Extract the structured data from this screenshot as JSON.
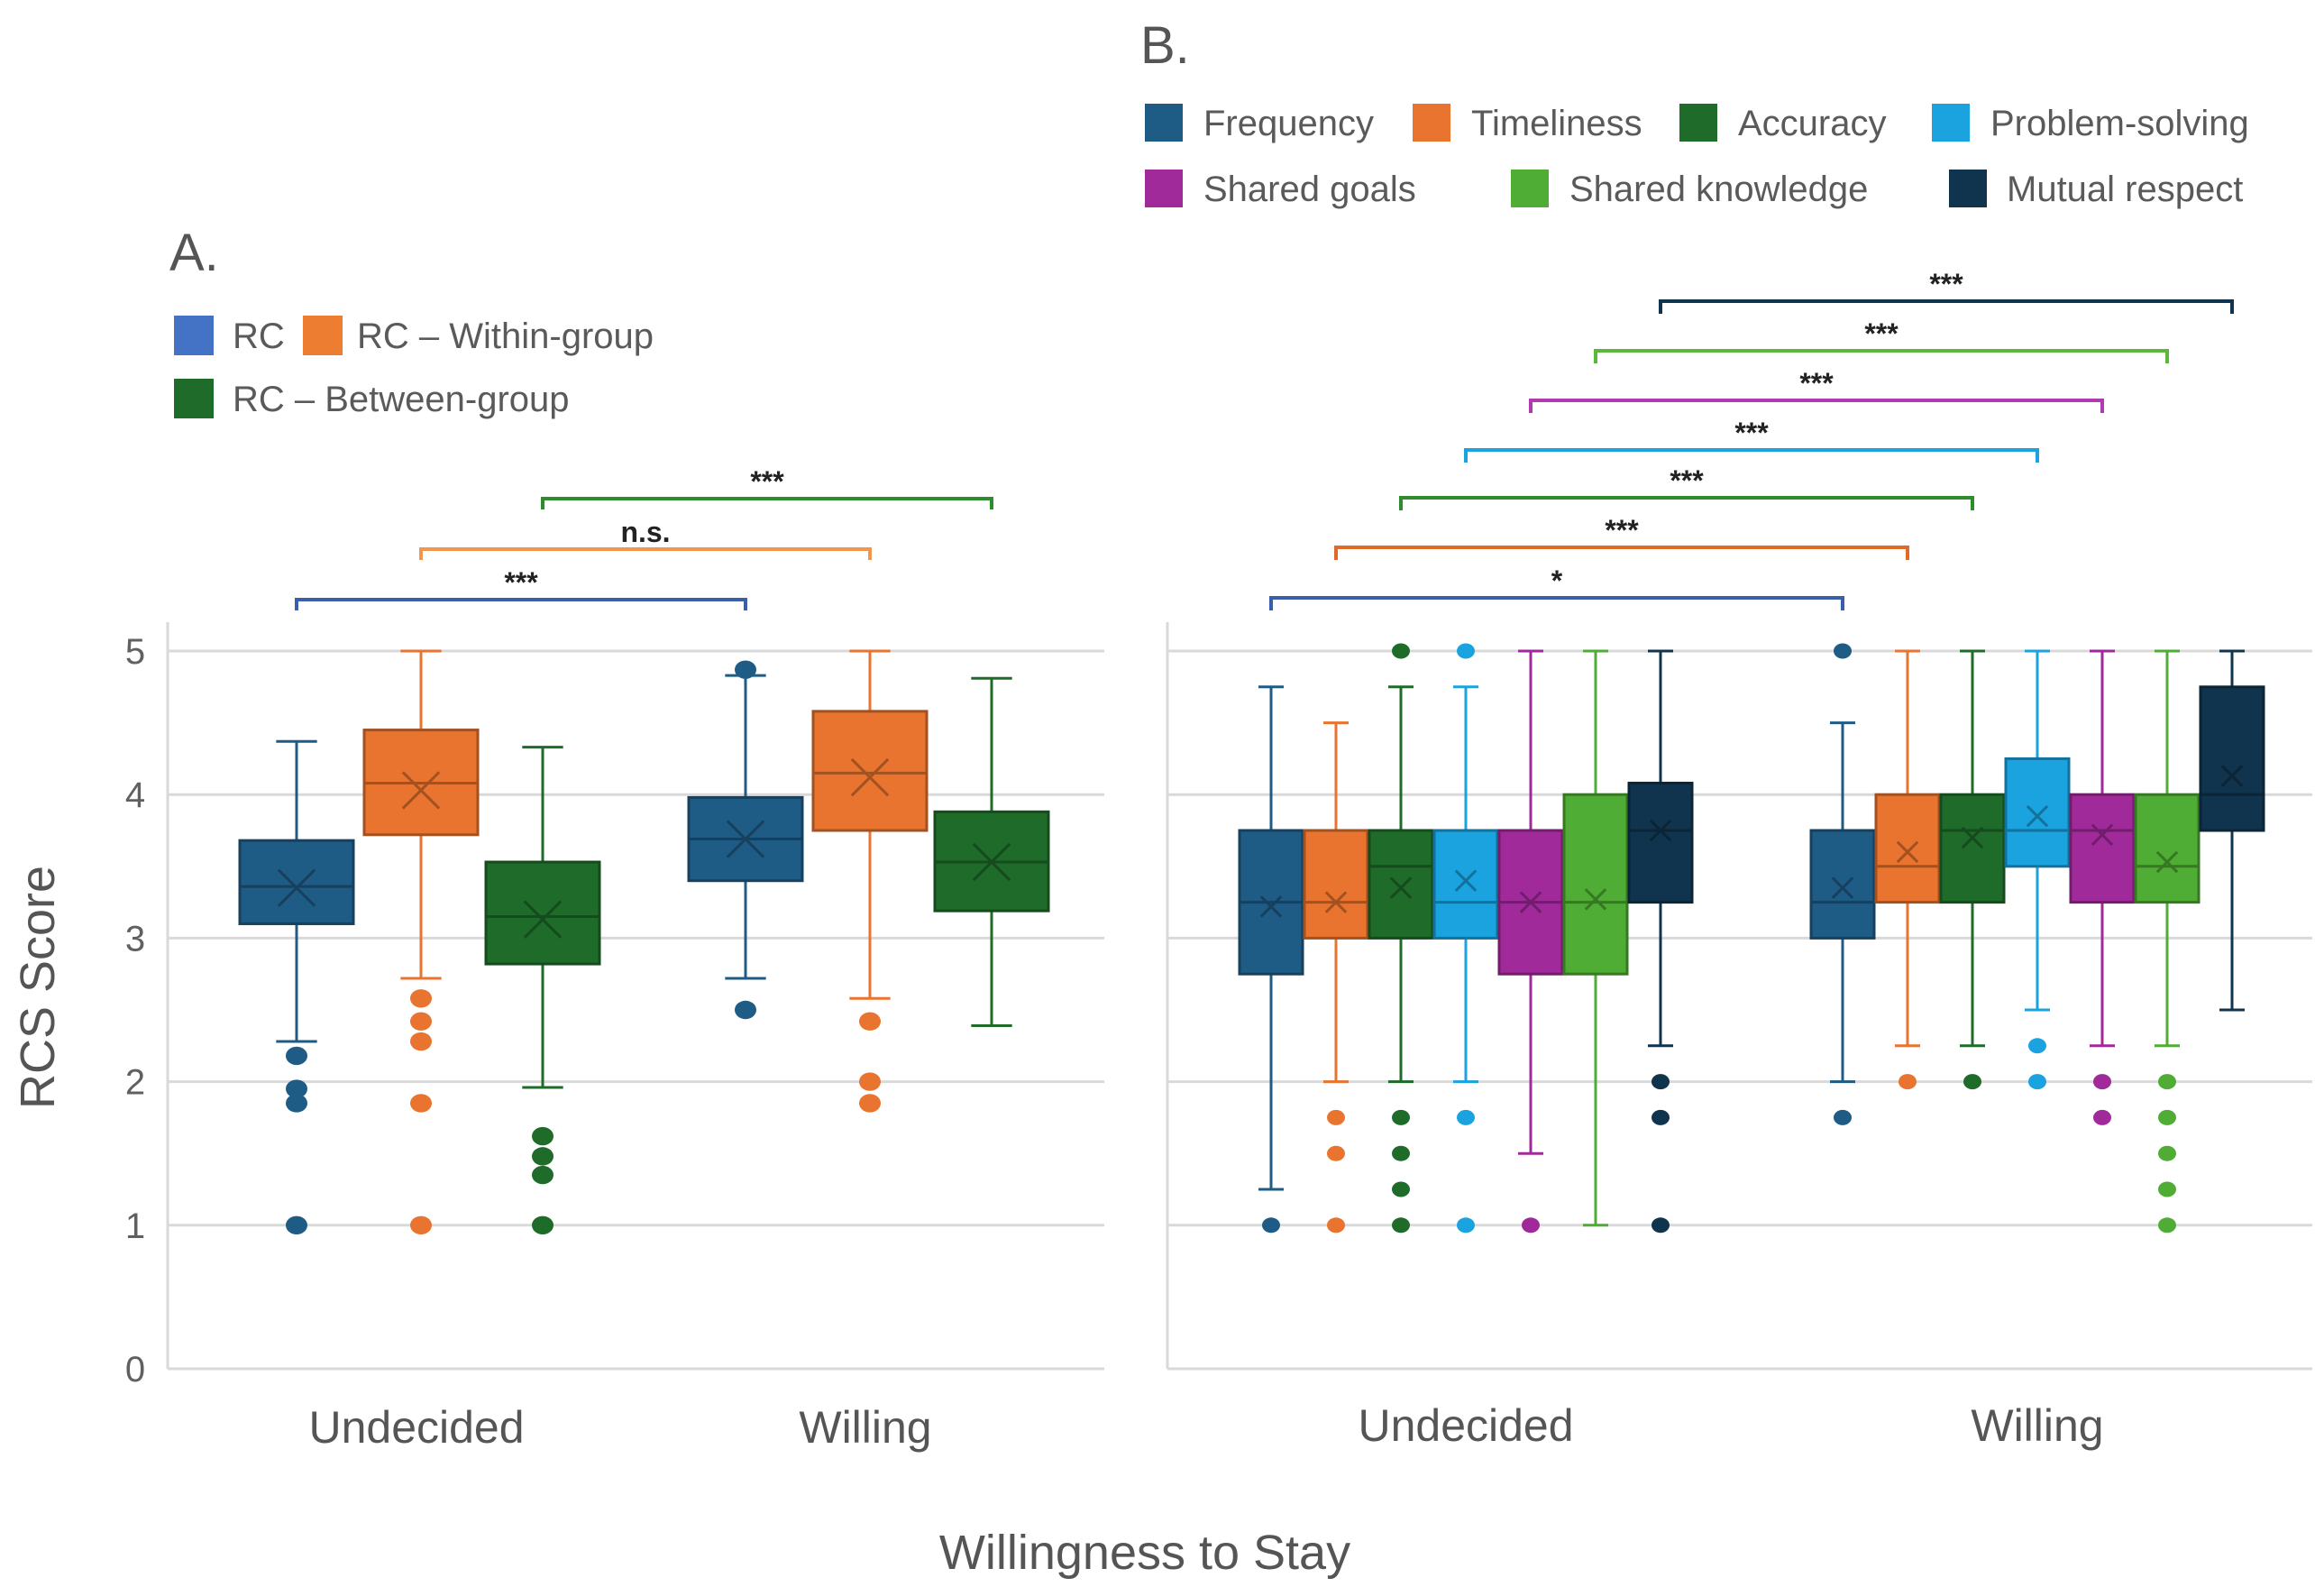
{
  "x_title": "Willingness to Stay",
  "y_title": "RCS Score",
  "chart_data": [
    {
      "panel": "A.",
      "type": "box",
      "categories": [
        "Undecided",
        "Willing"
      ],
      "ylim": [
        0,
        5
      ],
      "yticks": [
        0,
        1,
        2,
        3,
        4,
        5
      ],
      "legend": [
        {
          "name": "RC",
          "color": "#4472c4"
        },
        {
          "name": "RC – Within-group",
          "color": "#ed7d31"
        },
        {
          "name": "RC – Between-group",
          "color": "#1e6b2a"
        }
      ],
      "series": [
        {
          "name": "RC",
          "color": "#1f5c85",
          "boxes": [
            {
              "category": "Undecided",
              "min": 2.28,
              "q1": 3.1,
              "median": 3.36,
              "q3": 3.68,
              "max": 4.37,
              "mean": 3.35,
              "outliers": [
                2.18,
                1.95,
                1.85,
                1.0
              ]
            },
            {
              "category": "Willing",
              "min": 2.72,
              "q1": 3.4,
              "median": 3.69,
              "q3": 3.98,
              "max": 4.83,
              "mean": 3.69,
              "outliers": [
                4.87,
                2.5
              ]
            }
          ]
        },
        {
          "name": "RC – Within-group",
          "color": "#e8742f",
          "boxes": [
            {
              "category": "Undecided",
              "min": 2.72,
              "q1": 3.72,
              "median": 4.08,
              "q3": 4.45,
              "max": 5.0,
              "mean": 4.03,
              "outliers": [
                2.58,
                2.42,
                2.28,
                1.85,
                1.0
              ]
            },
            {
              "category": "Willing",
              "min": 2.58,
              "q1": 3.75,
              "median": 4.15,
              "q3": 4.58,
              "max": 5.0,
              "mean": 4.12,
              "outliers": [
                2.42,
                2.0,
                1.85
              ]
            }
          ]
        },
        {
          "name": "RC – Between-group",
          "color": "#1e6b2a",
          "boxes": [
            {
              "category": "Undecided",
              "min": 1.96,
              "q1": 2.82,
              "median": 3.15,
              "q3": 3.53,
              "max": 4.33,
              "mean": 3.13,
              "outliers": [
                1.62,
                1.48,
                1.35,
                1.0
              ]
            },
            {
              "category": "Willing",
              "min": 2.39,
              "q1": 3.19,
              "median": 3.53,
              "q3": 3.88,
              "max": 4.81,
              "mean": 3.53,
              "outliers": []
            }
          ]
        }
      ],
      "significance": [
        {
          "series": "RC",
          "label": "***",
          "color": "#3b5ea8"
        },
        {
          "series": "RC – Within-group",
          "label": "n.s.",
          "color": "#f0964f"
        },
        {
          "series": "RC – Between-group",
          "label": "***",
          "color": "#2e8b2e"
        }
      ]
    },
    {
      "panel": "B.",
      "type": "box",
      "categories": [
        "Undecided",
        "Willing"
      ],
      "ylim": [
        0,
        5
      ],
      "yticks": [
        0,
        1,
        2,
        3,
        4,
        5
      ],
      "legend": [
        {
          "name": "Frequency",
          "color": "#1f5c85"
        },
        {
          "name": "Timeliness",
          "color": "#e8742f"
        },
        {
          "name": "Accuracy",
          "color": "#1e6b2a"
        },
        {
          "name": "Problem-solving",
          "color": "#1aa3df"
        },
        {
          "name": "Shared goals",
          "color": "#a12a9a"
        },
        {
          "name": "Shared knowledge",
          "color": "#4fac34"
        },
        {
          "name": "Mutual respect",
          "color": "#10344d"
        }
      ],
      "series": [
        {
          "name": "Frequency",
          "color": "#1f5c85",
          "boxes": [
            {
              "category": "Undecided",
              "min": 1.25,
              "q1": 2.75,
              "median": 3.25,
              "q3": 3.75,
              "max": 4.75,
              "mean": 3.22,
              "outliers": [
                1.0
              ]
            },
            {
              "category": "Willing",
              "min": 2.0,
              "q1": 3.0,
              "median": 3.25,
              "q3": 3.75,
              "max": 4.5,
              "mean": 3.35,
              "outliers": [
                5.0,
                1.75
              ]
            }
          ]
        },
        {
          "name": "Timeliness",
          "color": "#e8742f",
          "boxes": [
            {
              "category": "Undecided",
              "min": 2.0,
              "q1": 3.0,
              "median": 3.25,
              "q3": 3.75,
              "max": 4.5,
              "mean": 3.25,
              "outliers": [
                1.75,
                1.5,
                1.0
              ]
            },
            {
              "category": "Willing",
              "min": 2.25,
              "q1": 3.25,
              "median": 3.5,
              "q3": 4.0,
              "max": 5.0,
              "mean": 3.6,
              "outliers": [
                2.0
              ]
            }
          ]
        },
        {
          "name": "Accuracy",
          "color": "#1e6b2a",
          "boxes": [
            {
              "category": "Undecided",
              "min": 2.0,
              "q1": 3.0,
              "median": 3.5,
              "q3": 3.75,
              "max": 4.75,
              "mean": 3.35,
              "outliers": [
                5.0,
                1.75,
                1.5,
                1.25,
                1.0
              ]
            },
            {
              "category": "Willing",
              "min": 2.25,
              "q1": 3.25,
              "median": 3.75,
              "q3": 4.0,
              "max": 5.0,
              "mean": 3.7,
              "outliers": [
                2.0
              ]
            }
          ]
        },
        {
          "name": "Problem-solving",
          "color": "#1aa3df",
          "boxes": [
            {
              "category": "Undecided",
              "min": 2.0,
              "q1": 3.0,
              "median": 3.25,
              "q3": 3.75,
              "max": 4.75,
              "mean": 3.4,
              "outliers": [
                5.0,
                1.75,
                1.0
              ]
            },
            {
              "category": "Willing",
              "min": 2.5,
              "q1": 3.5,
              "median": 3.75,
              "q3": 4.25,
              "max": 5.0,
              "mean": 3.85,
              "outliers": [
                2.25,
                2.0
              ]
            }
          ]
        },
        {
          "name": "Shared goals",
          "color": "#a12a9a",
          "boxes": [
            {
              "category": "Undecided",
              "min": 1.5,
              "q1": 2.75,
              "median": 3.25,
              "q3": 3.75,
              "max": 5.0,
              "mean": 3.25,
              "outliers": [
                1.0
              ]
            },
            {
              "category": "Willing",
              "min": 2.25,
              "q1": 3.25,
              "median": 3.75,
              "q3": 4.0,
              "max": 5.0,
              "mean": 3.72,
              "outliers": [
                2.0,
                1.75
              ]
            }
          ]
        },
        {
          "name": "Shared knowledge",
          "color": "#4fac34",
          "boxes": [
            {
              "category": "Undecided",
              "min": 1.0,
              "q1": 2.75,
              "median": 3.25,
              "q3": 4.0,
              "max": 5.0,
              "mean": 3.27,
              "outliers": []
            },
            {
              "category": "Willing",
              "min": 2.25,
              "q1": 3.25,
              "median": 3.5,
              "q3": 4.0,
              "max": 5.0,
              "mean": 3.53,
              "outliers": [
                2.0,
                1.75,
                1.5,
                1.25,
                1.0
              ]
            }
          ]
        },
        {
          "name": "Mutual respect",
          "color": "#10344d",
          "boxes": [
            {
              "category": "Undecided",
              "min": 2.25,
              "q1": 3.25,
              "median": 3.75,
              "q3": 4.08,
              "max": 5.0,
              "mean": 3.75,
              "outliers": [
                2.0,
                1.75,
                1.0
              ]
            },
            {
              "category": "Willing",
              "min": 2.5,
              "q1": 3.75,
              "median": 4.0,
              "q3": 4.75,
              "max": 5.0,
              "mean": 4.13,
              "outliers": []
            }
          ]
        }
      ],
      "significance": [
        {
          "series": "Frequency",
          "label": "*",
          "color": "#3b5ea8"
        },
        {
          "series": "Timeliness",
          "label": "***",
          "color": "#e06a2a"
        },
        {
          "series": "Accuracy",
          "label": "***",
          "color": "#2e8b2e"
        },
        {
          "series": "Problem-solving",
          "label": "***",
          "color": "#1aa3df"
        },
        {
          "series": "Shared goals",
          "label": "***",
          "color": "#b03ab0"
        },
        {
          "series": "Shared knowledge",
          "label": "***",
          "color": "#5cb83a"
        },
        {
          "series": "Mutual respect",
          "label": "***",
          "color": "#10344d"
        }
      ]
    }
  ]
}
